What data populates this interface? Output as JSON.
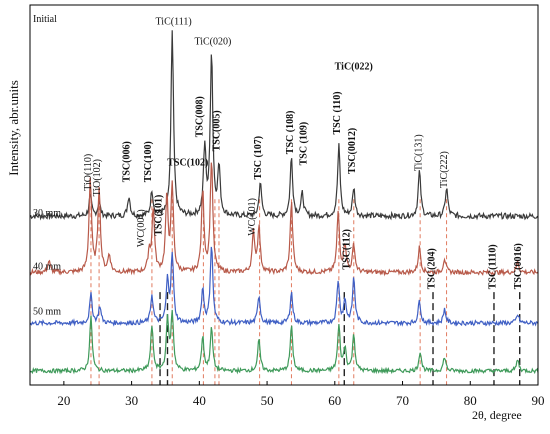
{
  "chart_data": {
    "type": "line",
    "xlabel": "2θ, degree",
    "ylabel": "Intensity, abr.units",
    "xlim": [
      15,
      90
    ],
    "x_ticks": [
      "20",
      "30",
      "40",
      "50",
      "60",
      "70",
      "80",
      "90"
    ],
    "x_tick_values": [
      20,
      30,
      40,
      50,
      60,
      70,
      80,
      90
    ],
    "grid": false,
    "series": [
      {
        "name": "Initial",
        "color": "#3a3a3a",
        "baseline": 6.0,
        "noise": 0.1,
        "peaks": [
          [
            23.9,
            0.7
          ],
          [
            25.2,
            0.5
          ],
          [
            29.6,
            0.7
          ],
          [
            33.0,
            0.9
          ],
          [
            36.0,
            6.5
          ],
          [
            40.8,
            2.4
          ],
          [
            41.8,
            5.8
          ],
          [
            42.9,
            1.7
          ],
          [
            49.0,
            1.2
          ],
          [
            53.6,
            2.1
          ],
          [
            55.2,
            0.8
          ],
          [
            60.6,
            2.5
          ],
          [
            62.8,
            1.0
          ],
          [
            72.5,
            1.6
          ],
          [
            76.5,
            1.0
          ]
        ]
      },
      {
        "name": "30 mm",
        "color": "#b85a4a",
        "baseline": 4.0,
        "noise": 0.08,
        "peaks": [
          [
            17.8,
            0.4
          ],
          [
            23.9,
            3.3
          ],
          [
            25.2,
            3.0
          ],
          [
            26.7,
            0.6
          ],
          [
            32.6,
            0.7
          ],
          [
            33.2,
            2.2
          ],
          [
            35.2,
            2.6
          ],
          [
            36.0,
            3.0
          ],
          [
            40.5,
            2.9
          ],
          [
            41.8,
            4.0
          ],
          [
            48.0,
            1.4
          ],
          [
            48.8,
            1.6
          ],
          [
            53.6,
            2.5
          ],
          [
            60.5,
            2.1
          ],
          [
            61.5,
            1.0
          ],
          [
            62.8,
            1.0
          ],
          [
            72.5,
            0.9
          ],
          [
            76.2,
            0.5
          ],
          [
            87.0,
            0.4
          ]
        ]
      },
      {
        "name": "40 mm",
        "color": "#3f5fc4",
        "baseline": 2.2,
        "noise": 0.08,
        "peaks": [
          [
            24.0,
            1.0
          ],
          [
            25.3,
            0.6
          ],
          [
            33.0,
            1.0
          ],
          [
            35.3,
            1.5
          ],
          [
            36.0,
            2.4
          ],
          [
            40.5,
            1.2
          ],
          [
            41.8,
            2.8
          ],
          [
            48.8,
            1.0
          ],
          [
            53.6,
            1.1
          ],
          [
            60.5,
            1.5
          ],
          [
            61.5,
            0.8
          ],
          [
            62.8,
            1.6
          ],
          [
            72.5,
            0.8
          ],
          [
            76.2,
            0.5
          ],
          [
            87.0,
            0.3
          ]
        ]
      },
      {
        "name": "50 mm",
        "color": "#3f9a5a",
        "baseline": 0.5,
        "noise": 0.07,
        "peaks": [
          [
            24.0,
            1.9
          ],
          [
            33.0,
            1.6
          ],
          [
            35.3,
            1.8
          ],
          [
            36.0,
            2.0
          ],
          [
            40.5,
            1.2
          ],
          [
            41.8,
            1.5
          ],
          [
            48.8,
            1.1
          ],
          [
            53.6,
            1.6
          ],
          [
            60.6,
            1.6
          ],
          [
            61.5,
            0.8
          ],
          [
            62.8,
            1.3
          ],
          [
            72.6,
            0.7
          ],
          [
            76.2,
            0.5
          ],
          [
            87.0,
            0.4
          ]
        ]
      }
    ],
    "red_reference_lines": [
      24.0,
      25.2,
      33.0,
      36.0,
      40.6,
      42.3,
      42.9,
      48.9,
      53.6,
      60.6,
      62.8,
      72.6,
      76.5
    ],
    "black_reference_lines": [
      34.2,
      35.3,
      61.4,
      74.5,
      83.5,
      87.3
    ],
    "sample_labels": [
      "Initial",
      "30 mm",
      "40 mm",
      "50 mm"
    ],
    "annotations": [
      {
        "text": "TiO(110)",
        "x": 24.0,
        "y": 6.9,
        "rotate": true,
        "bold": false
      },
      {
        "text": "TiO(102)",
        "x": 25.3,
        "y": 6.7,
        "rotate": true,
        "bold": false
      },
      {
        "text": "TSC(006)",
        "x": 29.7,
        "y": 7.2,
        "rotate": true,
        "bold": true
      },
      {
        "text": "TSC(100)",
        "x": 32.9,
        "y": 7.2,
        "rotate": true,
        "bold": true
      },
      {
        "text": "TiC(111)",
        "x": 36.2,
        "y": 12.8,
        "rotate": false,
        "bold": false
      },
      {
        "text": "TSC(008)",
        "x": 40.5,
        "y": 8.8,
        "rotate": true,
        "bold": true
      },
      {
        "text": "TiC(020)",
        "x": 42.0,
        "y": 12.1,
        "rotate": false,
        "bold": false
      },
      {
        "text": "TSC(005)",
        "x": 43.0,
        "y": 8.3,
        "rotate": true,
        "bold": true
      },
      {
        "text": "TSC (107)",
        "x": 49.1,
        "y": 7.3,
        "rotate": true,
        "bold": true
      },
      {
        "text": "TSC (108)",
        "x": 53.8,
        "y": 8.2,
        "rotate": true,
        "bold": true
      },
      {
        "text": "TSC (109)",
        "x": 55.8,
        "y": 7.8,
        "rotate": true,
        "bold": true
      },
      {
        "text": "TSC (110)",
        "x": 60.8,
        "y": 8.9,
        "rotate": true,
        "bold": true
      },
      {
        "text": "TiC(022)",
        "x": 62.8,
        "y": 11.2,
        "rotate": false,
        "bold": true
      },
      {
        "text": "TSC(0012)",
        "x": 63.0,
        "y": 7.5,
        "rotate": true,
        "bold": true
      },
      {
        "text": "TiC(131)",
        "x": 72.8,
        "y": 7.6,
        "rotate": true,
        "bold": false
      },
      {
        "text": "TiC(222)",
        "x": 76.6,
        "y": 7.0,
        "rotate": true,
        "bold": false
      },
      {
        "text": "WC(001)",
        "x": 31.8,
        "y": 4.9,
        "rotate": true,
        "bold": false
      },
      {
        "text": "TSC(101)",
        "x": 34.4,
        "y": 5.3,
        "rotate": true,
        "bold": true
      },
      {
        "text": "TSC(102)",
        "x": 38.3,
        "y": 7.8,
        "rotate": false,
        "bold": true
      },
      {
        "text": "WC(101)",
        "x": 48.2,
        "y": 5.3,
        "rotate": true,
        "bold": false
      },
      {
        "text": "TSC(112)",
        "x": 62.2,
        "y": 4.1,
        "rotate": true,
        "bold": true
      },
      {
        "text": "TSC(204)",
        "x": 74.7,
        "y": 3.4,
        "rotate": true,
        "bold": true
      },
      {
        "text": "TSC(1110)",
        "x": 83.7,
        "y": 3.4,
        "rotate": true,
        "bold": true
      },
      {
        "text": "TSC(0016)",
        "x": 87.5,
        "y": 3.4,
        "rotate": true,
        "bold": true
      }
    ]
  }
}
